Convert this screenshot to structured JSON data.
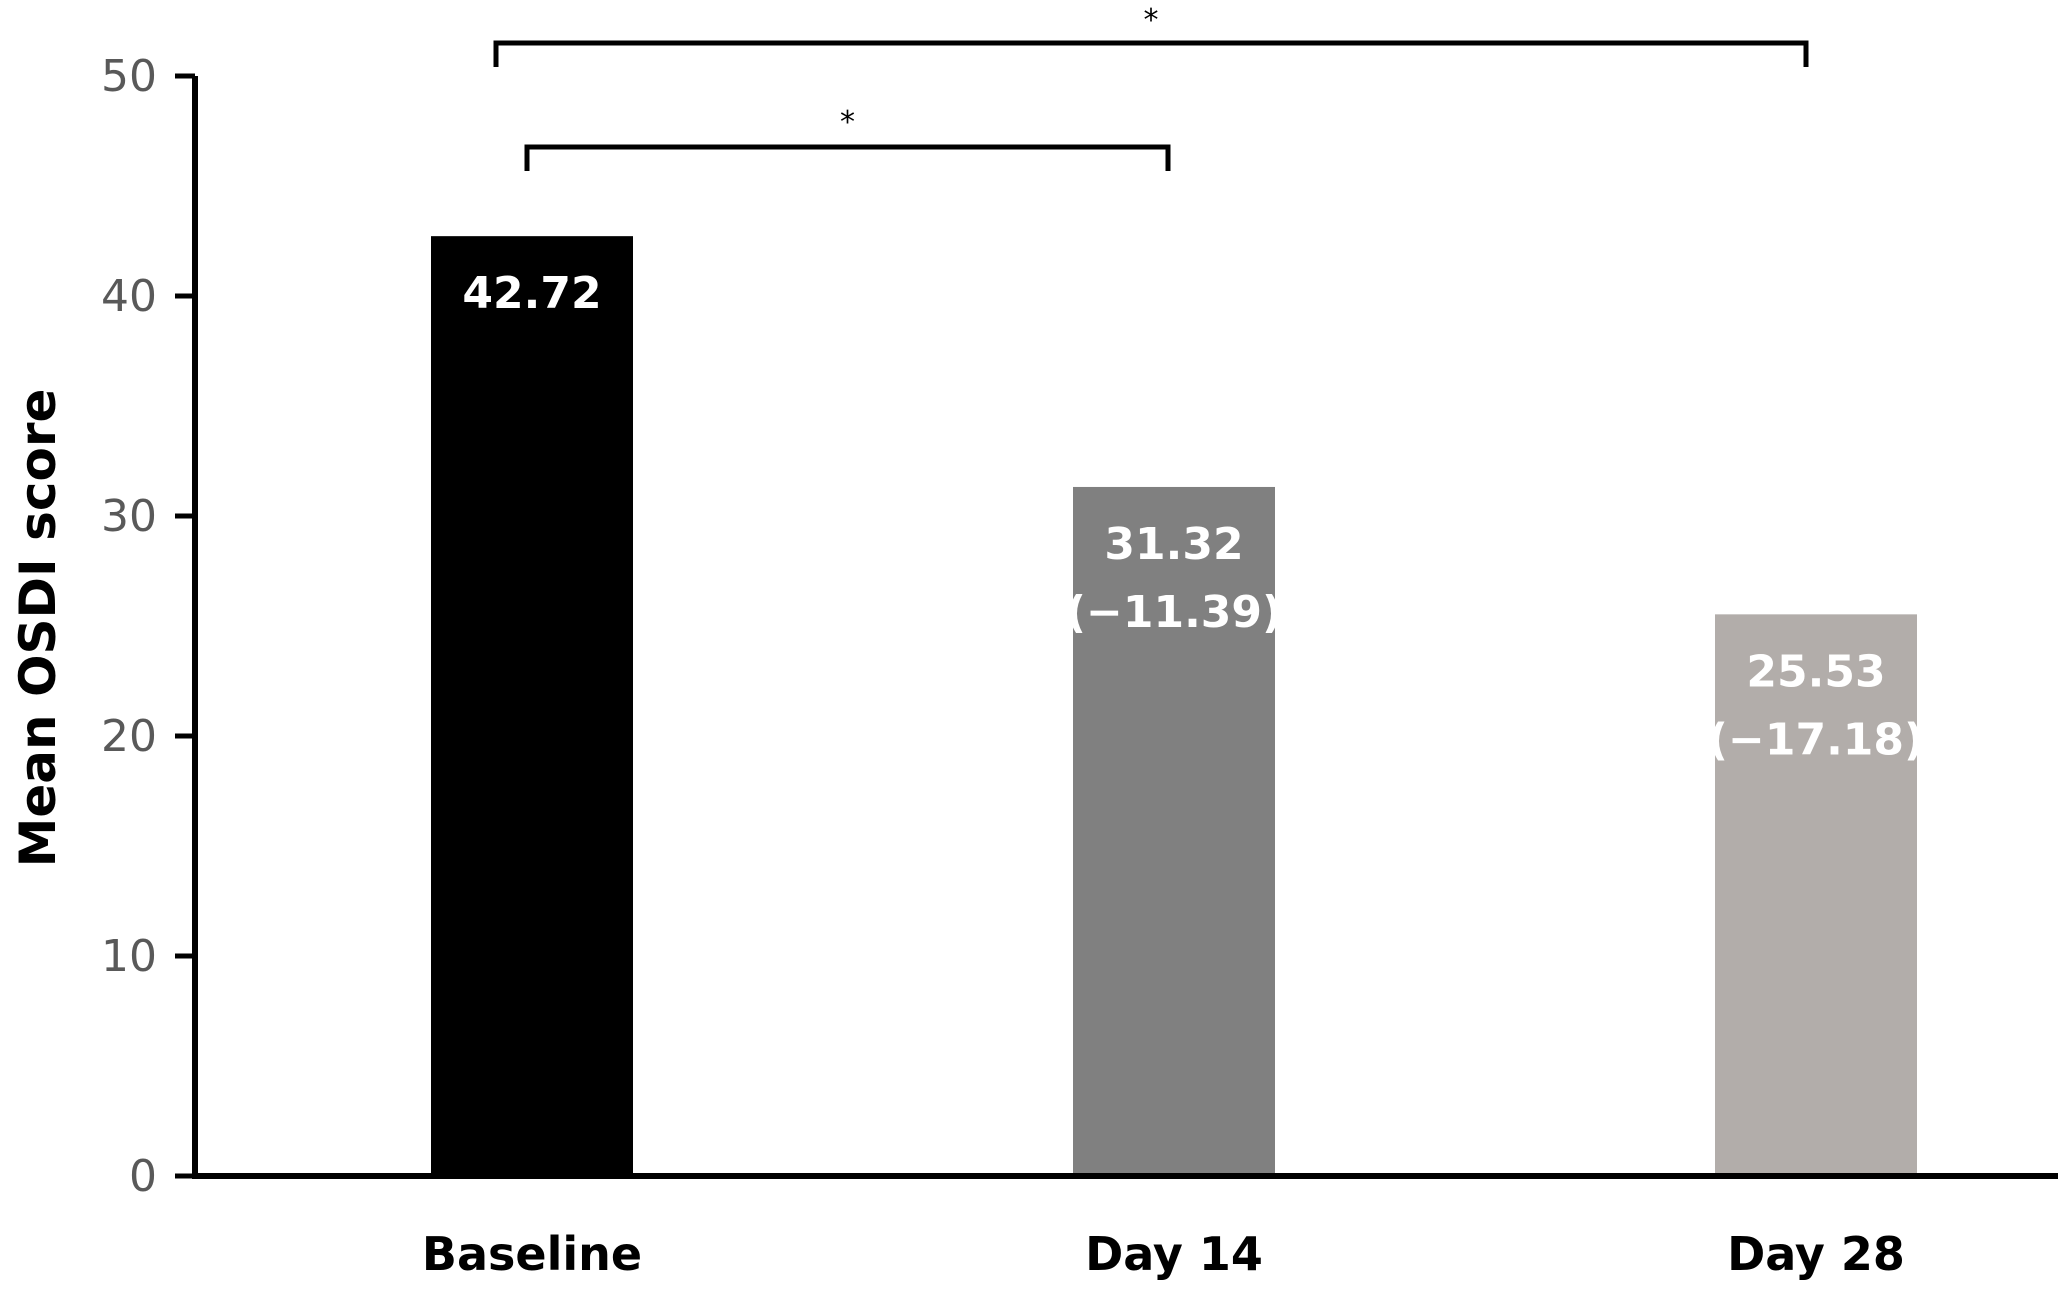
{
  "chart_data": {
    "type": "bar",
    "ylabel": "Mean OSDI score",
    "ylim": [
      0,
      50
    ],
    "yticks": [
      0,
      10,
      20,
      30,
      40,
      50
    ],
    "grid": false,
    "categories": [
      "Baseline",
      "Day 14",
      "Day 28"
    ],
    "values": [
      42.72,
      31.32,
      25.53
    ],
    "bar_colors": [
      "#000000",
      "#808080",
      "#b2adaa"
    ],
    "data_labels": [
      [
        "42.72"
      ],
      [
        "31.32",
        "(−11.39)"
      ],
      [
        "25.53",
        "(−17.18)"
      ]
    ],
    "significance": [
      {
        "from": 0,
        "to": 1,
        "label": "*"
      },
      {
        "from": 0,
        "to": 2,
        "label": "*"
      }
    ]
  }
}
